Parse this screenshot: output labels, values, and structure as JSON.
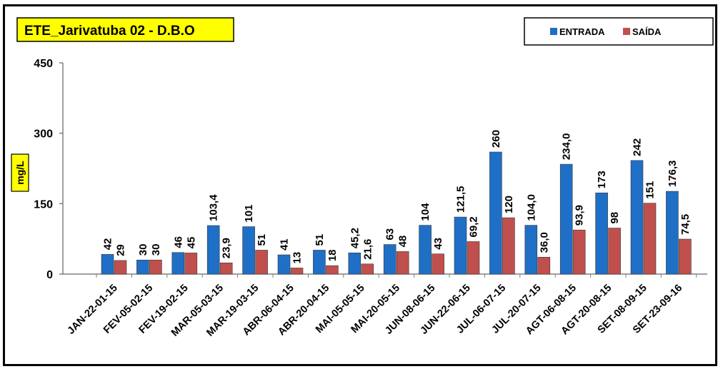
{
  "chart_data": {
    "type": "bar",
    "title": "ETE_Jarivatuba 02 - D.B.O",
    "ylabel": "mg/L",
    "ylim": [
      0,
      450
    ],
    "yticks": [
      0,
      150,
      300,
      450
    ],
    "grid": false,
    "legend_position": "top-right",
    "categories": [
      "JAN-22-01-15",
      "FEV-05-02-15",
      "FEV-19-02-15",
      "MAR-05-03-15",
      "MAR-19-03-15",
      "ABR-06-04-15",
      "ABR-20-04-15",
      "MAI-05-05-15",
      "MAI-20-05-15",
      "JUN-08-06-15",
      "JUN-22-06-15",
      "JUL-06-07-15",
      "JUL-20-07-15",
      "AGT-06-08-15",
      "AGT-20-08-15",
      "SET-08-09-15",
      "SET-23-09-16"
    ],
    "series": [
      {
        "name": "ENTRADA",
        "color": "#1f6fc6",
        "values": [
          42,
          30,
          46,
          103.4,
          101,
          41,
          51,
          45.2,
          63,
          104,
          121.5,
          260,
          104.0,
          234.0,
          173,
          242,
          176.3
        ],
        "labels": [
          "42",
          "30",
          "46",
          "103,4",
          "101",
          "41",
          "51",
          "45,2",
          "63",
          "104",
          "121,5",
          "260",
          "104,0",
          "234,0",
          "173",
          "242",
          "176,3"
        ]
      },
      {
        "name": "SAÍDA",
        "color": "#c0504d",
        "values": [
          29,
          30,
          45,
          23.9,
          51,
          13,
          18,
          21.6,
          48,
          43,
          69.2,
          120,
          36.0,
          93.9,
          98,
          151,
          74.5
        ],
        "labels": [
          "29",
          "30",
          "45",
          "23,9",
          "51",
          "13",
          "18",
          "21,6",
          "48",
          "43",
          "69,2",
          "120",
          "36,0",
          "93,9",
          "98",
          "151",
          "74,5"
        ]
      }
    ]
  },
  "colors": {
    "title_background": "#ffff00",
    "frame": "#000000",
    "axis": "#808080"
  }
}
